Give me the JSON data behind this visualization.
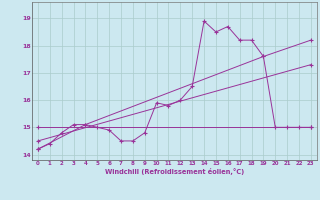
{
  "xlabel": "Windchill (Refroidissement éolien,°C)",
  "background_color": "#cce8f0",
  "grid_color": "#aacccc",
  "line_color": "#993399",
  "xlim": [
    -0.5,
    23.5
  ],
  "ylim": [
    13.8,
    19.6
  ],
  "xticks": [
    0,
    1,
    2,
    3,
    4,
    5,
    6,
    7,
    8,
    9,
    10,
    11,
    12,
    13,
    14,
    15,
    16,
    17,
    18,
    19,
    20,
    21,
    22,
    23
  ],
  "yticks": [
    14,
    15,
    16,
    17,
    18,
    19
  ],
  "series1_x": [
    0,
    1,
    2,
    3,
    4,
    5,
    6,
    7,
    8,
    9,
    10,
    11,
    12,
    13,
    14,
    15,
    16,
    17,
    18,
    19,
    20,
    21,
    22,
    23
  ],
  "series1_y": [
    14.2,
    14.4,
    14.8,
    15.1,
    15.1,
    15.0,
    14.9,
    14.5,
    14.5,
    14.8,
    15.9,
    15.8,
    16.0,
    16.5,
    18.9,
    18.5,
    18.7,
    18.2,
    18.2,
    17.6,
    15.0,
    15.0,
    15.0,
    15.0
  ],
  "series2_x": [
    0,
    4,
    19,
    23
  ],
  "series2_y": [
    14.2,
    15.1,
    17.6,
    18.2
  ],
  "series3_x": [
    0,
    23
  ],
  "series3_y": [
    14.5,
    17.3
  ],
  "series4_x": [
    0,
    23
  ],
  "series4_y": [
    15.0,
    15.0
  ]
}
